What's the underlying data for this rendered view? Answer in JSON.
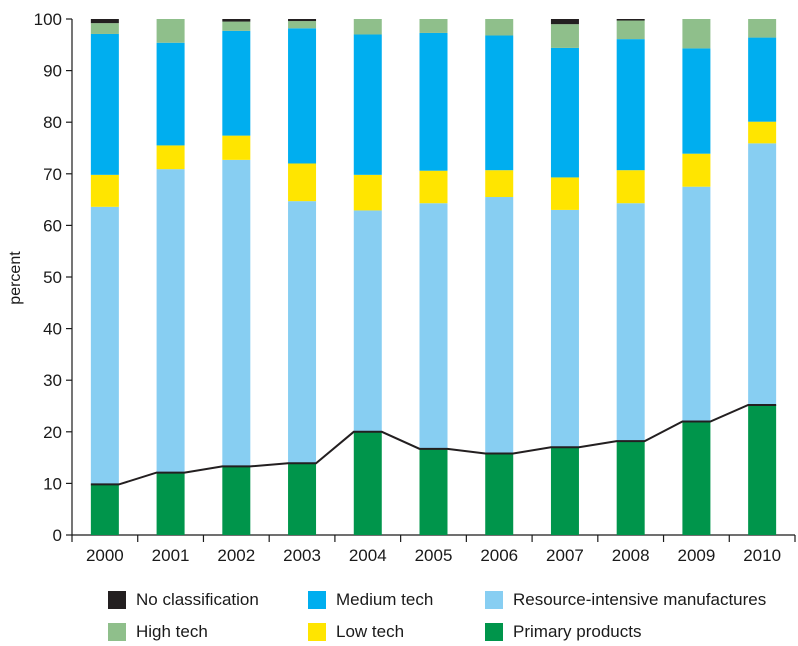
{
  "chart_data": {
    "type": "bar",
    "stacked": true,
    "title": "",
    "xlabel": "",
    "ylabel": "percent",
    "ylim": [
      0,
      100
    ],
    "yticks": [
      0,
      10,
      20,
      30,
      40,
      50,
      60,
      70,
      80,
      90,
      100
    ],
    "grid": false,
    "legend_position": "bottom",
    "categories": [
      "2000",
      "2001",
      "2002",
      "2003",
      "2004",
      "2005",
      "2006",
      "2007",
      "2008",
      "2009",
      "2010"
    ],
    "series": [
      {
        "name": "Primary products",
        "color": "#00954b",
        "values": [
          9.8,
          12.1,
          13.3,
          13.9,
          20.0,
          16.7,
          15.8,
          17.0,
          18.2,
          22.0,
          25.2
        ]
      },
      {
        "name": "Resource-intensive manufactures",
        "color": "#87cef2",
        "values": [
          53.8,
          58.8,
          59.4,
          50.8,
          42.9,
          47.6,
          49.7,
          46.0,
          46.1,
          45.5,
          50.7
        ]
      },
      {
        "name": "Low tech",
        "color": "#ffe500",
        "values": [
          6.2,
          4.6,
          4.7,
          7.3,
          6.9,
          6.3,
          5.2,
          6.3,
          6.4,
          6.4,
          4.2
        ]
      },
      {
        "name": "Medium tech",
        "color": "#00aeef",
        "values": [
          27.3,
          19.9,
          20.3,
          26.2,
          27.2,
          26.7,
          26.1,
          25.1,
          25.4,
          20.4,
          16.3
        ]
      },
      {
        "name": "High tech",
        "color": "#8fbf8b",
        "values": [
          2.1,
          4.6,
          1.8,
          1.4,
          3.0,
          2.7,
          3.2,
          4.6,
          3.6,
          5.7,
          3.6
        ]
      },
      {
        "name": "No classification",
        "color": "#231f20",
        "values": [
          0.8,
          0.0,
          0.5,
          0.4,
          0.0,
          0.0,
          0.0,
          1.0,
          0.3,
          0.0,
          0.0
        ]
      }
    ],
    "line": {
      "of_series": "Primary products",
      "color": "#231f20"
    },
    "legend": [
      "No classification",
      "Medium tech",
      "Resource-intensive manufactures",
      "High tech",
      "Low tech",
      "Primary products"
    ]
  }
}
